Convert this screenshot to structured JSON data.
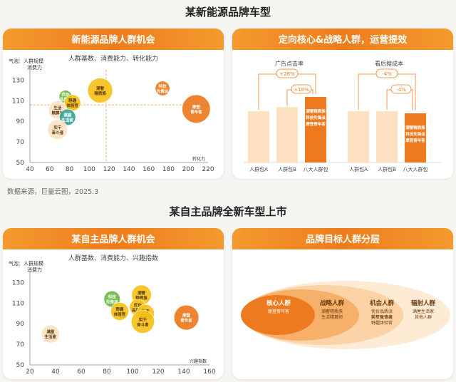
{
  "section1": {
    "title": "某新能源品牌车型"
  },
  "section2": {
    "title": "某自主品牌全新车型上市"
  },
  "source": "数据来源，巨量云图，2025.3",
  "colors": {
    "orange": "#ee7a1f",
    "yellow": "#f7c21c",
    "green": "#6dbb45",
    "teal": "#3aa39a",
    "peach": "#f8c99a",
    "light": "#fde2c4"
  },
  "card1": {
    "title": "新能源品牌人群机会",
    "subtitle": "人群基数、消费能力、转化能力",
    "y_label_1": "气泡：人群规模",
    "y_label_2": "消费力",
    "x_label": "转化力"
  },
  "card2": {
    "title": "定向核心&战略人群，运营提效",
    "group1_title": "广告点击率",
    "group2_title": "看后搜成本",
    "anno": [
      "+28%",
      "+18%",
      "-4%",
      "-4%"
    ],
    "highlight_text": [
      "潮奢精质族",
      "科技先锋派",
      "摩登青年客"
    ],
    "xcats": [
      "人群包A",
      "人群包B",
      "八大人群包",
      "人群包A",
      "人群包B",
      "八大人群包"
    ]
  },
  "card3": {
    "title": "某自主品牌人群机会",
    "subtitle": "人群基数、消费能力、兴趣指数",
    "y_label_1": "气泡：人群规模",
    "y_label_2": "消费力",
    "x_label": "兴趣指数"
  },
  "card4": {
    "title": "品牌目标人群分层",
    "layers": [
      {
        "title": "核心人群",
        "items": [
          "摩登青年客"
        ]
      },
      {
        "title": "战略人群",
        "items": [
          "潮奢精质族",
          "生活精算师"
        ]
      },
      {
        "title": "机会人群",
        "items": [
          "优价品质派",
          "实干奋斗者",
          "科技先锋派",
          "野趣体验官"
        ]
      },
      {
        "title": "辐射人群",
        "items": [
          "满屋生活家",
          "其他人群"
        ]
      }
    ]
  },
  "chart_data": [
    {
      "type": "scatter",
      "title": "新能源品牌人群机会",
      "xlabel": "转化力",
      "ylabel": "消费力",
      "xlim": [
        40,
        220
      ],
      "ylim": [
        50,
        140
      ],
      "xticks": [
        40,
        60,
        80,
        100,
        120,
        140,
        160,
        180,
        200,
        220
      ],
      "yticks": [
        50,
        70,
        90,
        110,
        130
      ],
      "reference_lines": {
        "x": 117,
        "y": 106
      },
      "points": [
        {
          "label": "优价品质派",
          "x": 76,
          "y": 114,
          "size": 5,
          "color": "#6dbb45"
        },
        {
          "label": "野趣体验官",
          "x": 83,
          "y": 108,
          "size": 7,
          "color": "#f7c21c"
        },
        {
          "label": "生活精算师",
          "x": 68,
          "y": 101,
          "size": 8,
          "color": "#fde2c4"
        },
        {
          "label": "满屋生活家",
          "x": 78,
          "y": 94,
          "size": 7,
          "color": "#3aa39a"
        },
        {
          "label": "实干奋斗者",
          "x": 68,
          "y": 82,
          "size": 9,
          "color": "#fde2c4"
        },
        {
          "label": "潮奢精质族",
          "x": 111,
          "y": 120,
          "size": 12,
          "color": "#f7c21c"
        },
        {
          "label": "科技先锋派",
          "x": 174,
          "y": 122,
          "size": 6,
          "color": "#ee7a1f"
        },
        {
          "label": "摩登青年客",
          "x": 208,
          "y": 102,
          "size": 14,
          "color": "#ee7a1f"
        }
      ]
    },
    {
      "type": "bar",
      "title": "广告点击率",
      "categories": [
        "人群包A",
        "人群包B",
        "八大人群包"
      ],
      "values": [
        100,
        108,
        128
      ],
      "annotations": [
        "+28%",
        "+18%"
      ]
    },
    {
      "type": "bar",
      "title": "看后搜成本",
      "categories": [
        "人群包A",
        "人群包B",
        "八大人群包"
      ],
      "values": [
        100,
        100,
        96
      ],
      "annotations": [
        "-4%",
        "-4%"
      ]
    },
    {
      "type": "scatter",
      "title": "某自主品牌人群机会",
      "xlabel": "兴趣指数",
      "ylabel": "消费力",
      "xlim": [
        20,
        160
      ],
      "ylim": [
        50,
        140
      ],
      "xticks": [
        20,
        40,
        60,
        80,
        100,
        120,
        140,
        160
      ],
      "yticks": [
        50,
        70,
        90,
        110,
        130
      ],
      "points": [
        {
          "label": "满屋生活家",
          "x": 36,
          "y": 80,
          "size": 8,
          "color": "#fde2c4"
        },
        {
          "label": "科技先锋派",
          "x": 84,
          "y": 114,
          "size": 7,
          "color": "#6dbb45"
        },
        {
          "label": "野趣体验官",
          "x": 90,
          "y": 102,
          "size": 8,
          "color": "#f7c21c"
        },
        {
          "label": "潮奢精质族",
          "x": 107,
          "y": 118,
          "size": 9,
          "color": "#f7c21c"
        },
        {
          "label": "优价品质派",
          "x": 104,
          "y": 106,
          "size": 7,
          "color": "#f7c21c"
        },
        {
          "label": "生活精算师",
          "x": 110,
          "y": 100,
          "size": 8,
          "color": "#f7c21c"
        },
        {
          "label": "实干奋斗者",
          "x": 108,
          "y": 92,
          "size": 11,
          "color": "#f7c21c"
        },
        {
          "label": "摩登青年客",
          "x": 142,
          "y": 96,
          "size": 12,
          "color": "#ee7a1f"
        }
      ]
    }
  ]
}
